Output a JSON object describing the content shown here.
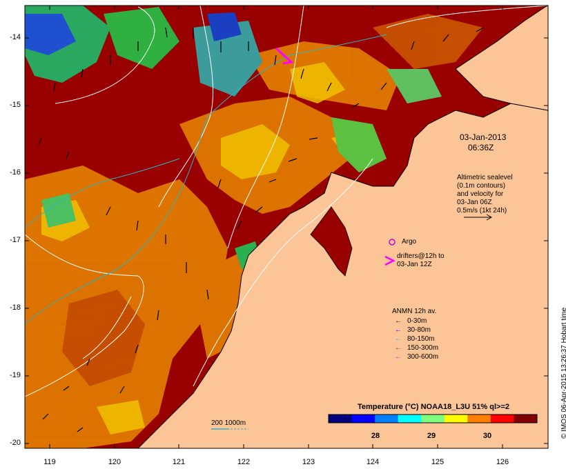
{
  "map": {
    "date_label": "03-Jan-2013",
    "time_label": "06:36Z",
    "altimetry_note": [
      "Altimetric sealevel",
      "(0.1m contours)",
      "and velocity for",
      "03-Jan 06Z",
      "0.5m/s (1kt 24h)"
    ],
    "argo_label": "Argo",
    "drifters_note": [
      "drifters@12h to",
      "03-Jan 12Z"
    ],
    "anmn": {
      "title": "ANMN 12h av.",
      "entries": [
        {
          "label": "0-30m",
          "color": "#000000"
        },
        {
          "label": "30-80m",
          "color": "#0000ff"
        },
        {
          "label": "80-150m",
          "color": "#00ccff"
        },
        {
          "label": "150-300m",
          "color": "#ff0000"
        },
        {
          "label": "300-600m",
          "color": "#ff00ff"
        }
      ]
    },
    "bathymetry_label": "200  1000m",
    "colorbar": {
      "title": "Temperature (°C) NOAA18_L3U 51% ql>=2",
      "ticks": [
        "28",
        "29",
        "30"
      ],
      "colors": [
        "#00007f",
        "#0000ff",
        "#007fff",
        "#00ffff",
        "#7fff7f",
        "#ffff00",
        "#ff7f00",
        "#ff0000",
        "#7f0000"
      ]
    },
    "credit": "© IMOS 06-Apr-2015 13:26:37 Hobart time",
    "y_ticks": [
      "-14",
      "-15",
      "-16",
      "-17",
      "-18",
      "-19",
      "-20"
    ],
    "x_ticks": [
      "119",
      "120",
      "121",
      "122",
      "123",
      "124",
      "125",
      "126"
    ],
    "colors": {
      "land": "#fbc597",
      "warm_sst": "#990000",
      "mid_sst": "#e07800",
      "cool_sst": "#22aa55"
    }
  }
}
